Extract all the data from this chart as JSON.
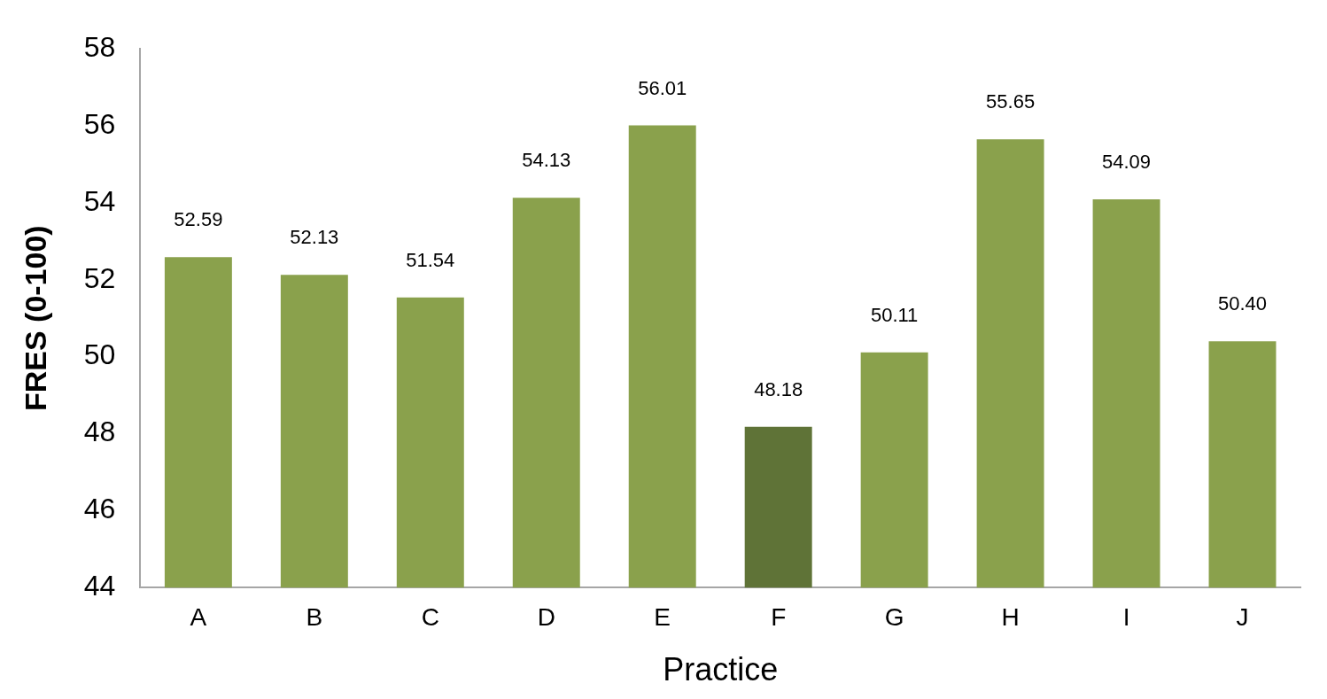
{
  "chart_data": {
    "type": "bar",
    "xlabel": "Practice",
    "ylabel": "FRES (0-100)",
    "categories": [
      "A",
      "B",
      "C",
      "D",
      "E",
      "F",
      "G",
      "H",
      "I",
      "J"
    ],
    "values": [
      52.59,
      52.13,
      51.54,
      54.13,
      56.01,
      48.18,
      50.11,
      55.65,
      54.09,
      50.4
    ],
    "colors": [
      "#8aa14c",
      "#8aa14c",
      "#8aa14c",
      "#8aa14c",
      "#8aa14c",
      "#5f7337",
      "#8aa14c",
      "#8aa14c",
      "#8aa14c",
      "#8aa14c"
    ],
    "value_labels": [
      "52.59",
      "52.13",
      "51.54",
      "54.13",
      "56.01",
      "48.18",
      "50.11",
      "55.65",
      "54.09",
      "50.40"
    ],
    "ylim": [
      44,
      58
    ],
    "yticks": [
      44,
      46,
      48,
      50,
      52,
      54,
      56,
      58
    ],
    "grid": false
  }
}
